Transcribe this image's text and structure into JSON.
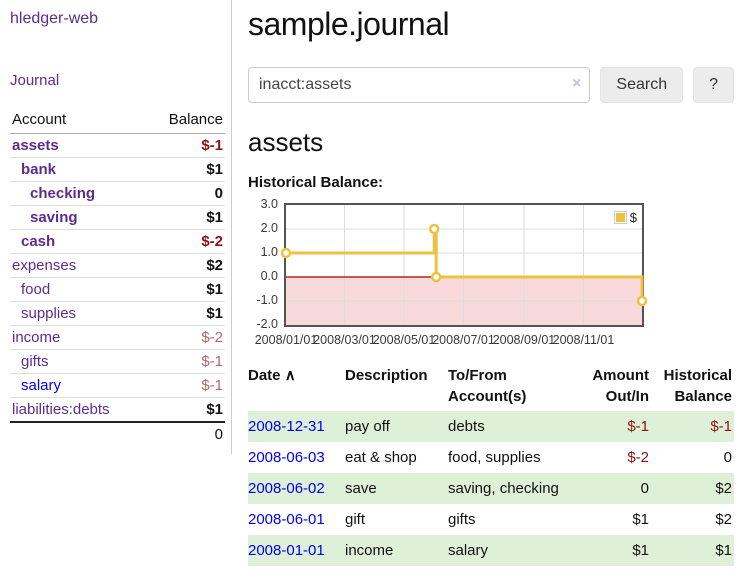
{
  "sidebar": {
    "brand": "hledger-web",
    "journal_link": "Journal",
    "accounts_table": {
      "header_account": "Account",
      "header_balance": "Balance",
      "rows": [
        {
          "name": "assets",
          "indent": 0,
          "bold": true,
          "balance": "$-1",
          "neg": "dark",
          "link": "visited"
        },
        {
          "name": "bank",
          "indent": 1,
          "bold": true,
          "balance": "$1",
          "neg": "none",
          "link": "visited"
        },
        {
          "name": "checking",
          "indent": 2,
          "bold": true,
          "balance": "0",
          "neg": "none",
          "link": "visited"
        },
        {
          "name": "saving",
          "indent": 2,
          "bold": true,
          "balance": "$1",
          "neg": "none",
          "link": "visited"
        },
        {
          "name": "cash",
          "indent": 1,
          "bold": true,
          "balance": "$-2",
          "neg": "dark",
          "link": "visited"
        },
        {
          "name": "expenses",
          "indent": 0,
          "bold": false,
          "balance": "$2",
          "neg": "none",
          "link": "visited"
        },
        {
          "name": "food",
          "indent": 1,
          "bold": false,
          "balance": "$1",
          "neg": "none",
          "link": "visited"
        },
        {
          "name": "supplies",
          "indent": 1,
          "bold": false,
          "balance": "$1",
          "neg": "none",
          "link": "visited"
        },
        {
          "name": "income",
          "indent": 0,
          "bold": false,
          "balance": "$-2",
          "neg": "light",
          "link": "visited"
        },
        {
          "name": "gifts",
          "indent": 1,
          "bold": false,
          "balance": "$-1",
          "neg": "light",
          "link": "visited"
        },
        {
          "name": "salary",
          "indent": 1,
          "bold": false,
          "balance": "$-1",
          "neg": "light",
          "link": "unvisited"
        },
        {
          "name": "liabilities:debts",
          "indent": 0,
          "bold": false,
          "balance": "$1",
          "neg": "none",
          "link": "visited"
        }
      ],
      "total": "0"
    }
  },
  "main": {
    "title": "sample.journal",
    "search": {
      "value": "inacct:assets",
      "clear_icon": "×",
      "search_button": "Search",
      "help_button": "?"
    },
    "account_heading": "assets",
    "chart_label": "Historical Balance:"
  },
  "chart_data": {
    "type": "line",
    "title": "Historical Balance",
    "legend": [
      {
        "label": "$",
        "color": "#edc240"
      }
    ],
    "x_ticks": [
      "2008/01/01",
      "2008/03/01",
      "2008/05/01",
      "2008/07/01",
      "2008/09/01",
      "2008/11/01"
    ],
    "y_ticks": [
      "3.0",
      "2.0",
      "1.0",
      "0.0",
      "-1.0",
      "-2.0"
    ],
    "xlim": [
      "2008-01-01",
      "2008-12-31"
    ],
    "ylim": [
      -2.0,
      3.0
    ],
    "grid": true,
    "series": [
      {
        "name": "$",
        "color": "#edc240",
        "style": "step",
        "points": [
          {
            "x": "2008-01-01",
            "y": 1.0
          },
          {
            "x": "2008-06-01",
            "y": 2.0
          },
          {
            "x": "2008-06-03",
            "y": 0.0
          },
          {
            "x": "2008-12-31",
            "y": -1.0
          }
        ]
      }
    ],
    "negative_region_color": "#f9dada",
    "zero_line_color": "#a40000",
    "gridline_color": "#dddddd",
    "border_color": "#545454"
  },
  "register": {
    "headers": [
      "Date",
      "Description",
      "To/From Account(s)",
      "Amount Out/In",
      "Historical Balance"
    ],
    "sort_icon": "∧",
    "rows": [
      {
        "date": "2008-12-31",
        "description": "pay off",
        "accounts": "debts",
        "amount": "$-1",
        "amount_neg": true,
        "balance": "$-1",
        "balance_neg": true
      },
      {
        "date": "2008-06-03",
        "description": "eat & shop",
        "accounts": "food, supplies",
        "amount": "$-2",
        "amount_neg": true,
        "balance": "0",
        "balance_neg": false
      },
      {
        "date": "2008-06-02",
        "description": "save",
        "accounts": "saving, checking",
        "amount": "0",
        "amount_neg": false,
        "balance": "$2",
        "balance_neg": false
      },
      {
        "date": "2008-06-01",
        "description": "gift",
        "accounts": "gifts",
        "amount": "$1",
        "amount_neg": false,
        "balance": "$2",
        "balance_neg": false
      },
      {
        "date": "2008-01-01",
        "description": "income",
        "accounts": "salary",
        "amount": "$1",
        "amount_neg": false,
        "balance": "$1",
        "balance_neg": false
      }
    ]
  },
  "colors": {
    "link_purple": "#5c2d91",
    "link_blue": "#0000ee",
    "negative_dark_red": "#8e1313",
    "negative_light_red": "#b36a6a",
    "row_stripe_green": "#dff0d8",
    "series_yellow": "#edc240",
    "chart_negative_pink": "#f9dada",
    "chart_zero_line": "#a40000"
  }
}
